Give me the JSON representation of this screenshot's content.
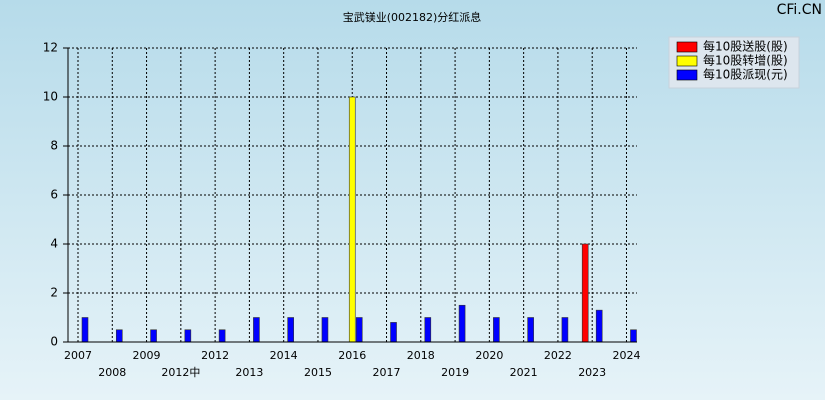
{
  "chart_data": {
    "type": "bar",
    "title": "宝武镁业(002182)分红派息",
    "watermark": "CFi.CN",
    "categories": [
      "2007",
      "2008",
      "2009",
      "2012中",
      "2012",
      "2013",
      "2014",
      "2015",
      "2016",
      "2017",
      "2018",
      "2019",
      "2020",
      "2021",
      "2022",
      "2023",
      "2024"
    ],
    "series": [
      {
        "name": "每10股送股(股)",
        "color": "#ff0000",
        "values": [
          null,
          null,
          null,
          null,
          null,
          null,
          null,
          null,
          null,
          null,
          null,
          null,
          null,
          null,
          null,
          4,
          null
        ]
      },
      {
        "name": "每10股转增(股)",
        "color": "#ffff00",
        "values": [
          null,
          null,
          null,
          null,
          null,
          null,
          null,
          null,
          10,
          null,
          null,
          null,
          null,
          null,
          null,
          null,
          null
        ]
      },
      {
        "name": "每10股派现(元)",
        "color": "#0000ff",
        "values": [
          1,
          0.5,
          0.5,
          0.5,
          0.5,
          1,
          1,
          1,
          1,
          0.8,
          1,
          1.5,
          1,
          1,
          1,
          1.3,
          0.5
        ]
      }
    ],
    "ylim": [
      0,
      12
    ],
    "yticks": [
      0,
      2,
      4,
      6,
      8,
      10,
      12
    ],
    "grid": true,
    "legend": "top-right"
  }
}
